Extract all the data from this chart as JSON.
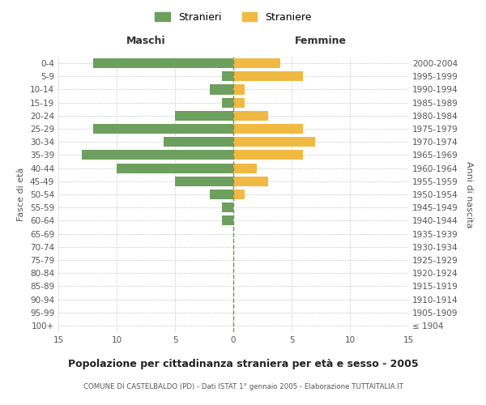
{
  "age_groups": [
    "100+",
    "95-99",
    "90-94",
    "85-89",
    "80-84",
    "75-79",
    "70-74",
    "65-69",
    "60-64",
    "55-59",
    "50-54",
    "45-49",
    "40-44",
    "35-39",
    "30-34",
    "25-29",
    "20-24",
    "15-19",
    "10-14",
    "5-9",
    "0-4"
  ],
  "birth_years": [
    "≤ 1904",
    "1905-1909",
    "1910-1914",
    "1915-1919",
    "1920-1924",
    "1925-1929",
    "1930-1934",
    "1935-1939",
    "1940-1944",
    "1945-1949",
    "1950-1954",
    "1955-1959",
    "1960-1964",
    "1965-1969",
    "1970-1974",
    "1975-1979",
    "1980-1984",
    "1985-1989",
    "1990-1994",
    "1995-1999",
    "2000-2004"
  ],
  "males": [
    0,
    0,
    0,
    0,
    0,
    0,
    0,
    0,
    1,
    1,
    2,
    5,
    10,
    13,
    6,
    12,
    5,
    1,
    2,
    1,
    12
  ],
  "females": [
    0,
    0,
    0,
    0,
    0,
    0,
    0,
    0,
    0,
    0,
    1,
    3,
    2,
    6,
    7,
    6,
    3,
    1,
    1,
    6,
    4
  ],
  "male_color": "#6d9f5e",
  "female_color": "#f0b942",
  "title": "Popolazione per cittadinanza straniera per età e sesso - 2005",
  "subtitle": "COMUNE DI CASTELBALDO (PD) - Dati ISTAT 1° gennaio 2005 - Elaborazione TUTTAITALIA.IT",
  "xlabel_left": "Maschi",
  "xlabel_right": "Femmine",
  "ylabel_left": "Fasce di età",
  "ylabel_right": "Anni di nascita",
  "legend_male": "Stranieri",
  "legend_female": "Straniere",
  "xlim": 15,
  "background_color": "#ffffff",
  "grid_color": "#cccccc"
}
